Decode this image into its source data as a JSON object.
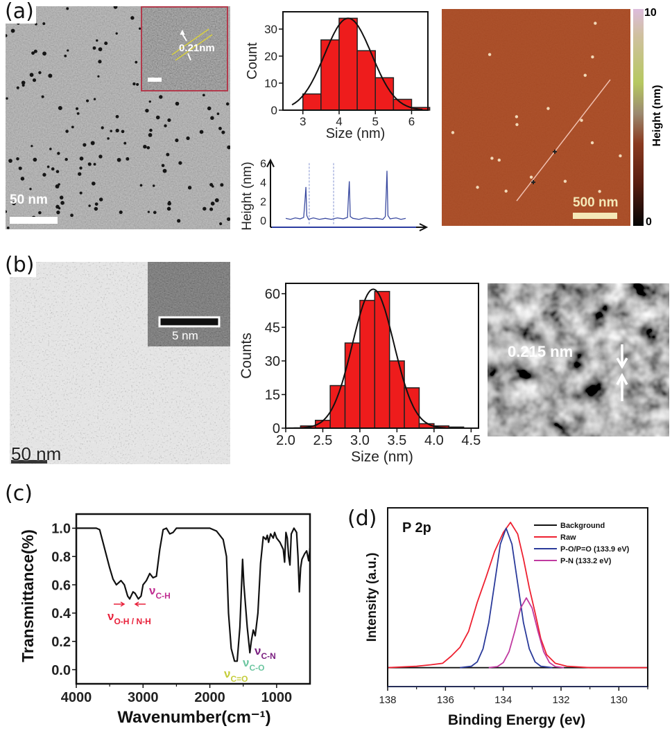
{
  "panels": {
    "a": "(a)",
    "b": "(b)",
    "c": "(c)",
    "d": "(d)"
  },
  "tem_a": {
    "scale_bar": "50 nm",
    "inset_spacing": "0.21nm"
  },
  "afm_a": {
    "scale_bar": "500 nm",
    "colorbar_max": "10",
    "colorbar_min": "0",
    "colorbar_label": "Height (nm)",
    "surface_color": "#a9461d"
  },
  "tem_b": {
    "scale_bar": "50 nm",
    "inset_scale": "5 nm"
  },
  "hrtem_b": {
    "spacing": "0.215 nm"
  },
  "chart_data": [
    {
      "id": "a-size-histogram",
      "type": "bar",
      "xlabel": "Size (nm)",
      "ylabel": "Count",
      "xlim": [
        2.45,
        6.45
      ],
      "ylim": [
        0,
        36.4
      ],
      "xticks": [
        3,
        4,
        5,
        6
      ],
      "yticks": [
        0,
        10,
        20,
        30
      ],
      "bin_starts": [
        3.0,
        3.5,
        4.0,
        4.5,
        5.0,
        5.5,
        6.0
      ],
      "bin_width": 0.5,
      "counts": [
        6,
        26,
        34,
        22,
        12,
        4,
        1
      ],
      "bar_color": "#ee1c1c",
      "fit": {
        "type": "gaussian",
        "center": 4.25,
        "amplitude": 34,
        "sigma": 0.65,
        "range": [
          2.7,
          6.3
        ]
      }
    },
    {
      "id": "a-height-profile",
      "type": "line",
      "xlabel": "",
      "ylabel": "Height (nm)",
      "ylim": [
        -0.73,
        6.4
      ],
      "yticks": [
        0,
        2,
        4,
        6
      ],
      "points": [
        [
          0,
          0.2
        ],
        [
          4,
          0.1
        ],
        [
          8,
          0.25
        ],
        [
          12,
          0.15
        ],
        [
          15,
          0.3
        ],
        [
          16,
          2
        ],
        [
          16.8,
          3.5
        ],
        [
          17.6,
          0.5
        ],
        [
          19,
          0.1
        ],
        [
          23,
          0.25
        ],
        [
          28,
          0.1
        ],
        [
          33,
          0.2
        ],
        [
          38,
          0.1
        ],
        [
          43,
          0.25
        ],
        [
          48,
          0.15
        ],
        [
          51.5,
          0.3
        ],
        [
          52.3,
          2.5
        ],
        [
          53,
          4.1
        ],
        [
          53.8,
          0.4
        ],
        [
          56,
          0.2
        ],
        [
          61,
          0.1
        ],
        [
          66,
          0.25
        ],
        [
          71,
          0.15
        ],
        [
          76,
          0.2
        ],
        [
          81,
          0.1
        ],
        [
          83,
          0.4
        ],
        [
          83.8,
          3
        ],
        [
          84.4,
          5.2
        ],
        [
          85.2,
          0.5
        ],
        [
          87,
          0.15
        ],
        [
          92,
          0.25
        ],
        [
          96,
          0.1
        ],
        [
          100,
          0.2
        ]
      ],
      "markers": [
        19.6,
        39.9
      ],
      "line_color": "#3a4aa0"
    },
    {
      "id": "b-size-histogram",
      "type": "bar",
      "xlabel": "Size (nm)",
      "ylabel": "Counts",
      "xlim": [
        2.0,
        4.6
      ],
      "ylim": [
        0,
        64.6
      ],
      "xticks": [
        2.0,
        2.5,
        3.0,
        3.5,
        4.0,
        4.5
      ],
      "yticks": [
        0,
        15,
        30,
        45,
        60
      ],
      "bin_starts": [
        2.2,
        2.4,
        2.6,
        2.8,
        3.0,
        3.2,
        3.4,
        3.6,
        3.8,
        4.0,
        4.2
      ],
      "bin_width": 0.2,
      "counts": [
        1,
        3.5,
        19,
        38,
        57,
        61,
        30,
        18,
        2,
        1,
        0.5
      ],
      "bar_color": "#ee1c1c",
      "fit": {
        "type": "gaussian",
        "center": 3.18,
        "amplitude": 62,
        "sigma": 0.28,
        "range": [
          2.0,
          4.4
        ]
      }
    },
    {
      "id": "c-ftir",
      "type": "line",
      "xlabel": "Wavenumber(cm⁻¹)",
      "ylabel": "Transmittance(%)",
      "xlim": [
        4000,
        500
      ],
      "ylim": [
        -0.1,
        1.1
      ],
      "xticks": [
        4000,
        3000,
        2000,
        1000
      ],
      "yticks": [
        0.0,
        0.2,
        0.4,
        0.6,
        0.8,
        1.0
      ],
      "series": [
        {
          "points": [
            [
              4000,
              1.0
            ],
            [
              3700,
              1.0
            ],
            [
              3650,
              0.99
            ],
            [
              3600,
              0.9
            ],
            [
              3500,
              0.72
            ],
            [
              3450,
              0.64
            ],
            [
              3400,
              0.6
            ],
            [
              3330,
              0.63
            ],
            [
              3280,
              0.6
            ],
            [
              3230,
              0.52
            ],
            [
              3200,
              0.5
            ],
            [
              3150,
              0.55
            ],
            [
              3120,
              0.54
            ],
            [
              3070,
              0.5
            ],
            [
              3030,
              0.52
            ],
            [
              3000,
              0.6
            ],
            [
              2950,
              0.63
            ],
            [
              2900,
              0.68
            ],
            [
              2850,
              0.65
            ],
            [
              2800,
              0.66
            ],
            [
              2750,
              0.85
            ],
            [
              2700,
              0.99
            ],
            [
              2650,
              1.0
            ],
            [
              2600,
              0.96
            ],
            [
              2550,
              0.97
            ],
            [
              2500,
              1.0
            ],
            [
              2400,
              1.0
            ],
            [
              2000,
              1.0
            ],
            [
              1900,
              0.98
            ],
            [
              1800,
              0.92
            ],
            [
              1750,
              0.8
            ],
            [
              1720,
              0.4
            ],
            [
              1680,
              0.15
            ],
            [
              1630,
              0.06
            ],
            [
              1590,
              0.06
            ],
            [
              1550,
              0.3
            ],
            [
              1510,
              0.78
            ],
            [
              1490,
              0.6
            ],
            [
              1440,
              0.3
            ],
            [
              1400,
              0.12
            ],
            [
              1380,
              0.2
            ],
            [
              1350,
              0.28
            ],
            [
              1320,
              0.24
            ],
            [
              1280,
              0.4
            ],
            [
              1240,
              0.75
            ],
            [
              1200,
              0.94
            ],
            [
              1160,
              0.92
            ],
            [
              1140,
              0.95
            ],
            [
              1120,
              0.9
            ],
            [
              1090,
              0.96
            ],
            [
              1050,
              0.93
            ],
            [
              1030,
              0.97
            ],
            [
              1000,
              0.93
            ],
            [
              950,
              0.9
            ],
            [
              900,
              0.85
            ],
            [
              880,
              0.76
            ],
            [
              860,
              0.97
            ],
            [
              840,
              0.93
            ],
            [
              820,
              0.8
            ],
            [
              800,
              0.74
            ],
            [
              780,
              0.96
            ],
            [
              740,
              1.0
            ],
            [
              700,
              0.97
            ],
            [
              680,
              0.8
            ],
            [
              660,
              0.55
            ],
            [
              640,
              0.72
            ],
            [
              620,
              0.78
            ],
            [
              580,
              0.82
            ],
            [
              550,
              0.84
            ],
            [
              520,
              0.77
            ],
            [
              500,
              0.86
            ]
          ],
          "color": "#111111"
        }
      ],
      "annotations": [
        {
          "symbol": "ν",
          "sub": "O-H / N-H",
          "color": "#e8203a"
        },
        {
          "symbol": "ν",
          "sub": "C-H",
          "color": "#c02c90"
        },
        {
          "symbol": "ν",
          "sub": "C=O",
          "color": "#c4cc3a"
        },
        {
          "symbol": "ν",
          "sub": "C-O",
          "color": "#6cc6a0"
        },
        {
          "symbol": "ν",
          "sub": "C-N",
          "color": "#7a1f80"
        }
      ]
    },
    {
      "id": "d-xps",
      "type": "line",
      "title": "P 2p",
      "xlabel": "Binding Energy (ev)",
      "ylabel": "Intensity (a.u.)",
      "xlim": [
        138,
        129
      ],
      "ylim": [
        -0.13,
        1.1
      ],
      "xticks": [
        138,
        136,
        134,
        132,
        130
      ],
      "legend": "top-right",
      "series": [
        {
          "name": "Background",
          "color": "#111111",
          "points": [
            [
              138,
              0
            ],
            [
              129,
              0
            ]
          ]
        },
        {
          "name": "Raw",
          "color": "#ee2030",
          "points": [
            [
              138,
              0
            ],
            [
              137,
              0.01
            ],
            [
              136.5,
              0.02
            ],
            [
              136.1,
              0.03
            ],
            [
              135.8,
              0.08
            ],
            [
              135.5,
              0.14
            ],
            [
              135.2,
              0.25
            ],
            [
              134.9,
              0.45
            ],
            [
              134.6,
              0.62
            ],
            [
              134.3,
              0.8
            ],
            [
              134.0,
              0.93
            ],
            [
              133.75,
              1.0
            ],
            [
              133.5,
              0.92
            ],
            [
              133.3,
              0.75
            ],
            [
              133.1,
              0.55
            ],
            [
              132.9,
              0.38
            ],
            [
              132.7,
              0.2
            ],
            [
              132.5,
              0.09
            ],
            [
              132.2,
              0.03
            ],
            [
              131.8,
              0.01
            ],
            [
              131,
              0
            ],
            [
              130,
              0
            ],
            [
              129,
              0
            ]
          ]
        },
        {
          "name": "P-O/P=O (133.9 eV)",
          "color": "#2a3a9a",
          "points": [
            [
              135.5,
              0
            ],
            [
              135.1,
              0.01
            ],
            [
              134.9,
              0.04
            ],
            [
              134.7,
              0.13
            ],
            [
              134.5,
              0.31
            ],
            [
              134.3,
              0.58
            ],
            [
              134.1,
              0.85
            ],
            [
              133.9,
              0.96
            ],
            [
              133.7,
              0.85
            ],
            [
              133.5,
              0.58
            ],
            [
              133.3,
              0.31
            ],
            [
              133.1,
              0.13
            ],
            [
              132.9,
              0.04
            ],
            [
              132.7,
              0.01
            ],
            [
              132.3,
              0
            ]
          ]
        },
        {
          "name": "P-N (133.2 eV)",
          "color": "#c03aa0",
          "points": [
            [
              134.5,
              0
            ],
            [
              134.2,
              0.008
            ],
            [
              134.0,
              0.035
            ],
            [
              133.8,
              0.11
            ],
            [
              133.6,
              0.25
            ],
            [
              133.4,
              0.41
            ],
            [
              133.2,
              0.48
            ],
            [
              133.0,
              0.41
            ],
            [
              132.8,
              0.25
            ],
            [
              132.6,
              0.11
            ],
            [
              132.4,
              0.035
            ],
            [
              132.2,
              0.008
            ],
            [
              131.9,
              0
            ]
          ]
        }
      ]
    }
  ]
}
